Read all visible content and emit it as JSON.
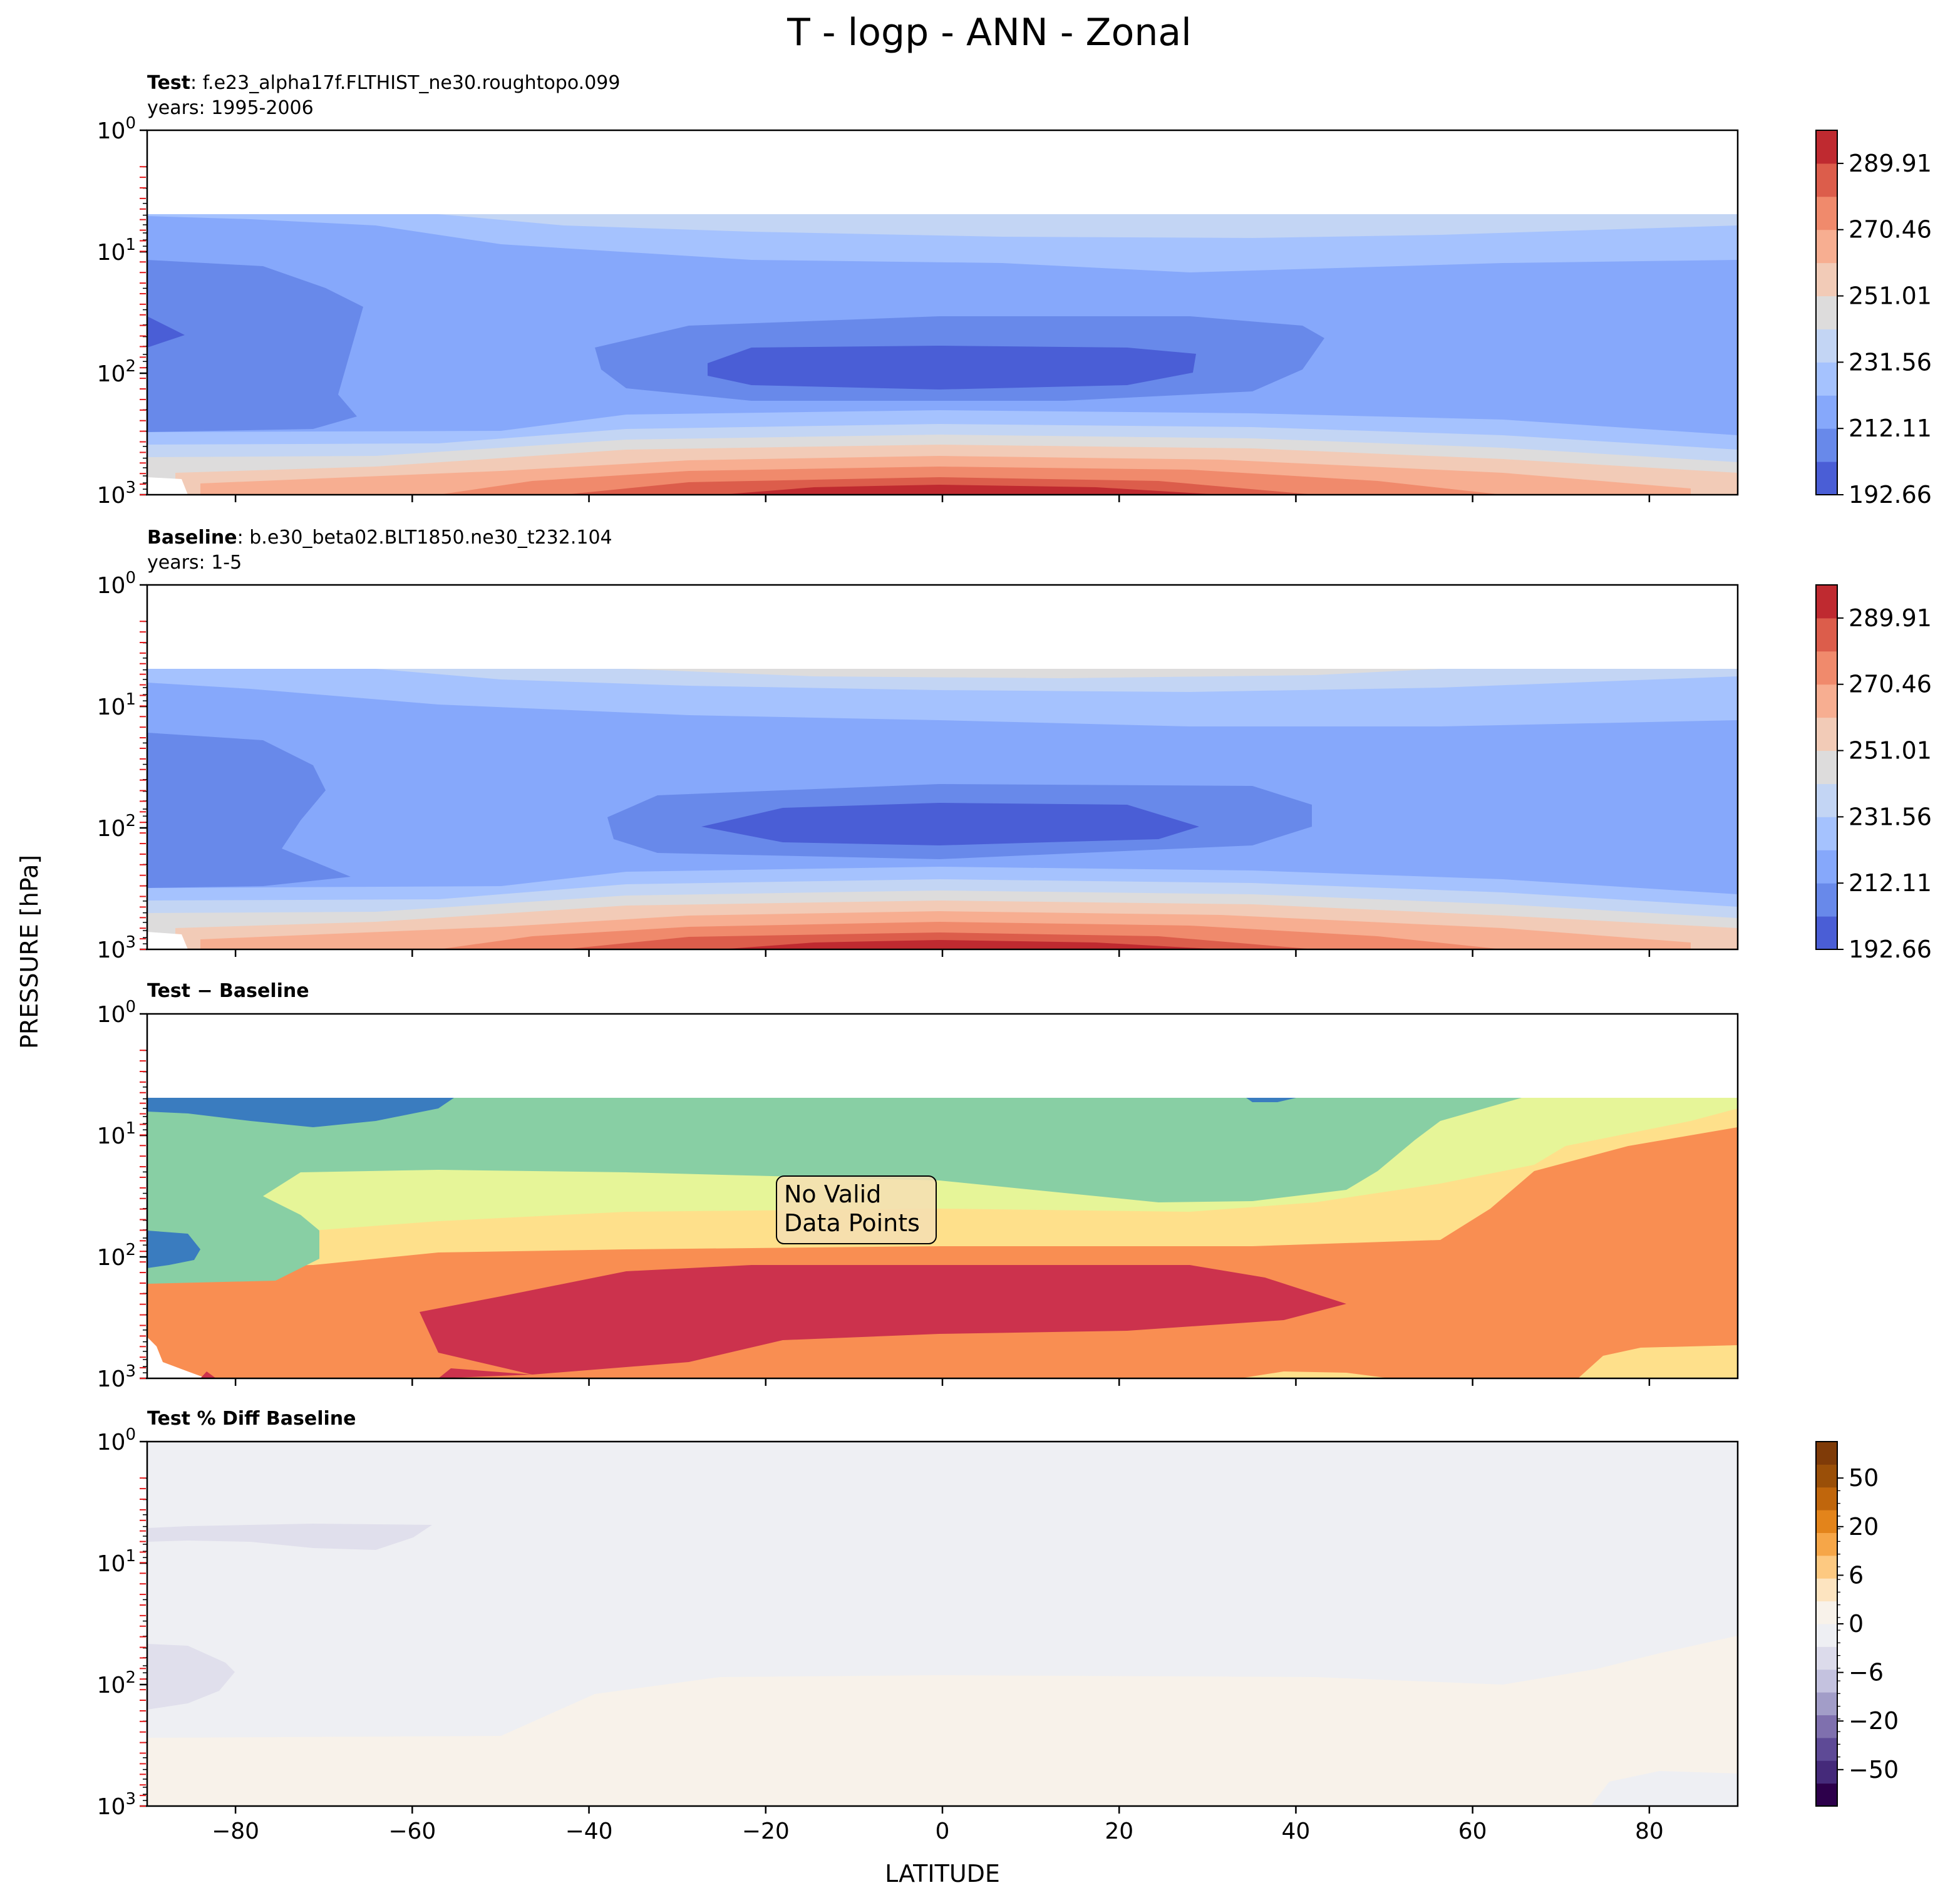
{
  "figure": {
    "title": "T - logp - ANN - Zonal",
    "xlabel": "LATITUDE",
    "ylabel": "PRESSURE [hPa]"
  },
  "chart_data": [
    {
      "type": "heatmap",
      "panel": "test",
      "title_bold": "Test",
      "title_rest": ": f.e23_alpha17f.FLTHIST_ne30.roughtopo.099",
      "subtitle": "years: 1995-2006",
      "xlim": [
        -90,
        90
      ],
      "ylim": [
        1000,
        1
      ],
      "yscale": "log",
      "colormap": "coolwarm",
      "colorbar": {
        "ticks": [
          "289.91",
          "270.46",
          "251.01",
          "231.56",
          "212.11",
          "192.66"
        ]
      },
      "levels": [
        192.66,
        202.38,
        212.11,
        221.83,
        231.56,
        241.28,
        251.01,
        260.73,
        270.46,
        280.18,
        289.91,
        299.64
      ],
      "colors": [
        "#4a5ed6",
        "#6889ea",
        "#86a8fb",
        "#a5c2fe",
        "#c3d5f4",
        "#dddcdc",
        "#f2cbb7",
        "#f7ae91",
        "#f08a6c",
        "#dc5d4b",
        "#bf2a30"
      ]
    },
    {
      "type": "heatmap",
      "panel": "baseline",
      "title_bold": "Baseline",
      "title_rest": ": b.e30_beta02.BLT1850.ne30_t232.104",
      "subtitle": "years: 1-5",
      "xlim": [
        -90,
        90
      ],
      "ylim": [
        1000,
        1
      ],
      "yscale": "log",
      "colormap": "coolwarm",
      "colorbar": {
        "ticks": [
          "289.91",
          "270.46",
          "251.01",
          "231.56",
          "212.11",
          "192.66"
        ]
      }
    },
    {
      "type": "heatmap",
      "panel": "difference",
      "title_bold": "Test − Baseline",
      "xlim": [
        -90,
        90
      ],
      "ylim": [
        1000,
        1
      ],
      "yscale": "log",
      "annotation": [
        "No Valid",
        "Data Points"
      ]
    },
    {
      "type": "heatmap",
      "panel": "percent_difference",
      "title_bold": "Test % Diff Baseline",
      "xlim": [
        -90,
        90
      ],
      "ylim": [
        1000,
        1
      ],
      "yscale": "log",
      "colormap": "PuOr_r",
      "colorbar": {
        "ticks": [
          "50",
          "20",
          "6",
          "0",
          "−6",
          "−20",
          "−50"
        ]
      }
    }
  ],
  "axes": {
    "xticks": [
      "−80",
      "−60",
      "−40",
      "−20",
      "0",
      "20",
      "40",
      "60",
      "80"
    ],
    "yticks_exp": [
      "0",
      "1",
      "2",
      "3"
    ],
    "ytick_base": "10"
  }
}
